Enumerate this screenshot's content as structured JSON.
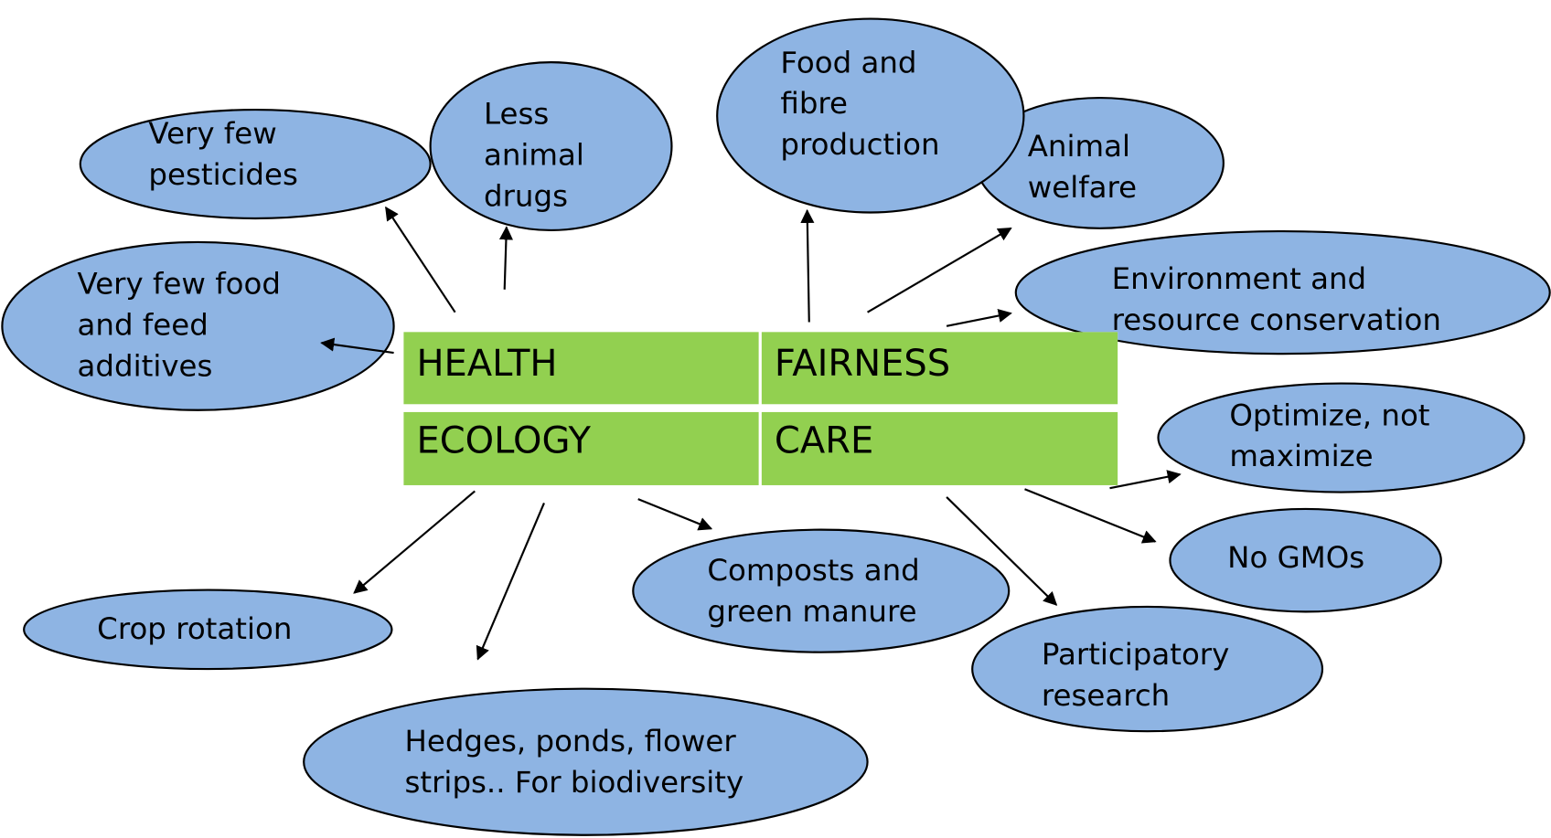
{
  "center": {
    "cells": [
      "HEALTH",
      "FAIRNESS",
      "ECOLOGY",
      "CARE"
    ]
  },
  "nodes": [
    {
      "lines": [
        "Very few",
        "pesticides"
      ]
    },
    {
      "lines": [
        "Less",
        "animal",
        "drugs"
      ]
    },
    {
      "lines": [
        "Very few food",
        "and feed",
        "additives"
      ]
    },
    {
      "lines": [
        "Animal",
        "welfare"
      ]
    },
    {
      "lines": [
        "Food and",
        "fibre",
        "production"
      ]
    },
    {
      "lines": [
        "Environment and",
        "resource conservation"
      ]
    },
    {
      "lines": [
        "Optimize, not",
        "maximize"
      ]
    },
    {
      "lines": [
        "No GMOs"
      ]
    },
    {
      "lines": [
        "Participatory",
        "research"
      ]
    },
    {
      "lines": [
        "Composts and",
        "green manure"
      ]
    },
    {
      "lines": [
        "Crop rotation"
      ]
    },
    {
      "lines": [
        "Hedges, ponds, flower",
        "strips.. For biodiversity"
      ]
    }
  ]
}
